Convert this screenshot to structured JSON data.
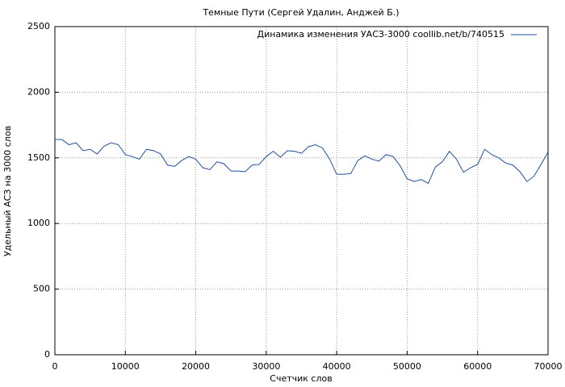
{
  "chart_data": {
    "type": "line",
    "title": "Темные Пути (Сергей Удалин, Анджей Б.)",
    "x_label": "Счетчик слов",
    "y_label": "Удельный АСЗ на 3000 слов",
    "x": [
      0,
      1000,
      2000,
      3000,
      4000,
      5000,
      6000,
      7000,
      8000,
      9000,
      10000,
      11000,
      12000,
      13000,
      14000,
      15000,
      16000,
      17000,
      18000,
      19000,
      20000,
      21000,
      22000,
      23000,
      24000,
      25000,
      26000,
      27000,
      28000,
      29000,
      30000,
      31000,
      32000,
      33000,
      34000,
      35000,
      36000,
      37000,
      38000,
      39000,
      40000,
      41000,
      42000,
      43000,
      44000,
      45000,
      46000,
      47000,
      48000,
      49000,
      50000,
      51000,
      52000,
      53000,
      54000,
      55000,
      56000,
      57000,
      58000,
      59000,
      60000,
      61000,
      62000,
      63000,
      64000,
      65000,
      66000,
      67000,
      68000,
      69000,
      70000
    ],
    "series": [
      {
        "name": "Динамика изменения УАСЗ-3000 coollib.net/b/740515",
        "color": "#1f4e9c",
        "values": [
          1640,
          1640,
          1600,
          1615,
          1555,
          1565,
          1530,
          1590,
          1615,
          1600,
          1525,
          1510,
          1490,
          1565,
          1555,
          1530,
          1445,
          1435,
          1480,
          1510,
          1490,
          1425,
          1410,
          1470,
          1455,
          1400,
          1400,
          1395,
          1445,
          1450,
          1510,
          1550,
          1505,
          1555,
          1550,
          1535,
          1585,
          1600,
          1575,
          1490,
          1375,
          1375,
          1380,
          1480,
          1515,
          1490,
          1475,
          1525,
          1510,
          1440,
          1340,
          1320,
          1335,
          1305,
          1430,
          1470,
          1550,
          1490,
          1390,
          1425,
          1450,
          1565,
          1525,
          1500,
          1460,
          1445,
          1395,
          1320,
          1360,
          1450,
          1545
        ]
      }
    ],
    "xlim": [
      0,
      70000
    ],
    "ylim": [
      0,
      2500
    ],
    "xticks": [
      0,
      10000,
      20000,
      30000,
      40000,
      50000,
      60000,
      70000
    ],
    "yticks": [
      0,
      500,
      1000,
      1500,
      2000,
      2500
    ],
    "grid": true,
    "legend": "top-right"
  }
}
